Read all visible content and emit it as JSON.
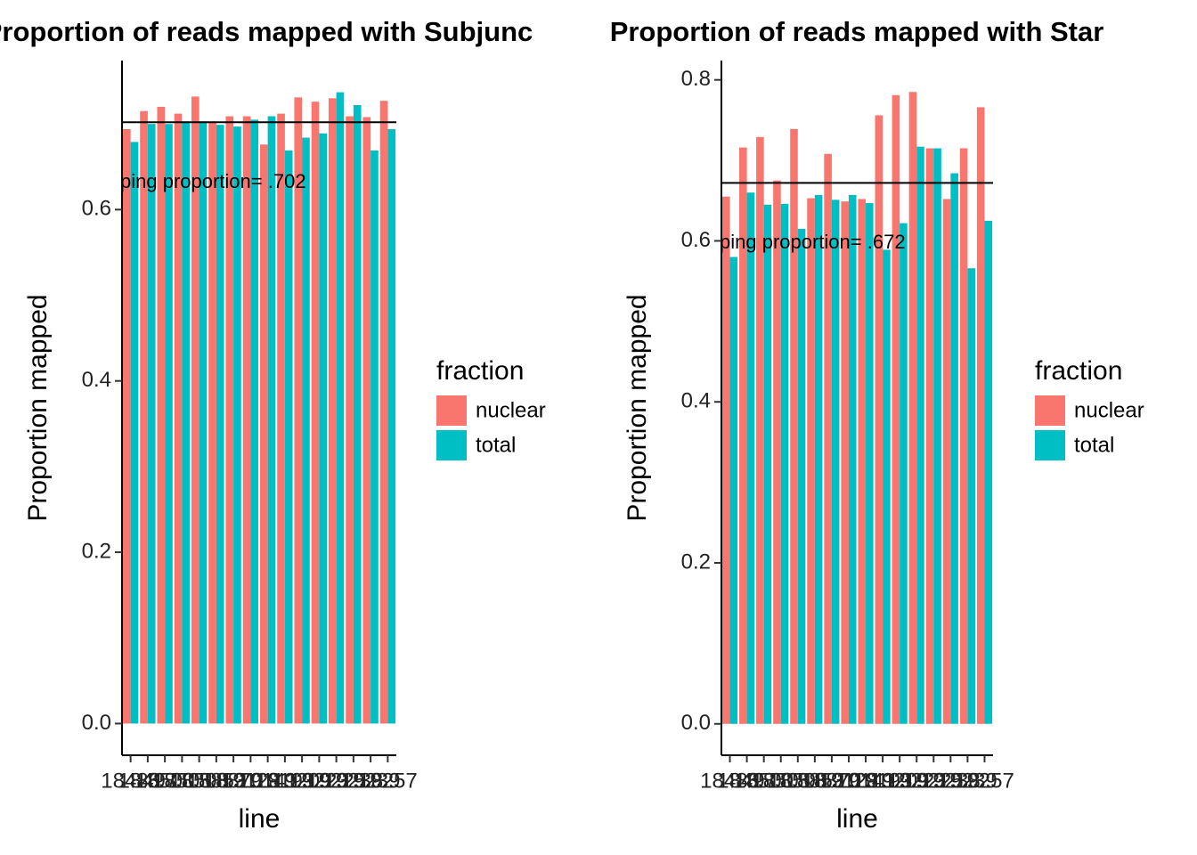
{
  "chart_data": [
    {
      "type": "bar",
      "title": "Proportion of reads mapped with Subjunc",
      "xlabel": "line",
      "ylabel": "Proportion mapped",
      "categories": [
        "18486",
        "18497",
        "18500",
        "18505",
        "18508",
        "18853",
        "18870",
        "19128",
        "19141",
        "19193",
        "19209",
        "19223",
        "19225",
        "19238",
        "19239",
        "19257"
      ],
      "series": [
        {
          "name": "nuclear",
          "color": "#F8766D",
          "values": [
            0.694,
            0.715,
            0.72,
            0.712,
            0.732,
            0.703,
            0.709,
            0.709,
            0.676,
            0.712,
            0.731,
            0.726,
            0.73,
            0.709,
            0.708,
            0.727
          ]
        },
        {
          "name": "total",
          "color": "#00BFC4",
          "values": [
            0.679,
            0.7,
            0.7,
            0.703,
            0.703,
            0.699,
            0.697,
            0.705,
            0.709,
            0.669,
            0.684,
            0.689,
            0.737,
            0.722,
            0.669,
            0.694
          ]
        }
      ],
      "legend_title": "fraction",
      "hline": 0.702,
      "annotation": "ping proportion= .702",
      "ylim": [
        -0.037,
        0.774
      ],
      "yticks": [
        {
          "value": 0,
          "label": "0.0"
        },
        0.2,
        0.4,
        0.6
      ]
    },
    {
      "type": "bar",
      "title": "Proportion of reads mapped with Star",
      "xlabel": "line",
      "ylabel": "Proportion mapped",
      "categories": [
        "18486",
        "18497",
        "18500",
        "18505",
        "18508",
        "18853",
        "18870",
        "19128",
        "19141",
        "19193",
        "19209",
        "19223",
        "19225",
        "19238",
        "19239",
        "19257"
      ],
      "series": [
        {
          "name": "nuclear",
          "color": "#F8766D",
          "values": [
            0.655,
            0.716,
            0.729,
            0.675,
            0.739,
            0.653,
            0.708,
            0.649,
            0.652,
            0.756,
            0.781,
            0.785,
            0.715,
            0.652,
            0.715,
            0.766
          ]
        },
        {
          "name": "total",
          "color": "#00BFC4",
          "values": [
            0.58,
            0.66,
            0.645,
            0.646,
            0.615,
            0.657,
            0.651,
            0.657,
            0.647,
            0.589,
            0.622,
            0.717,
            0.715,
            0.684,
            0.566,
            0.625
          ]
        }
      ],
      "legend_title": "fraction",
      "hline": 0.672,
      "annotation": "ping proportion= .672",
      "ylim": [
        -0.039,
        0.824
      ],
      "yticks": [
        {
          "value": 0,
          "label": "0.0"
        },
        0.2,
        0.4,
        0.6,
        0.8
      ]
    }
  ]
}
